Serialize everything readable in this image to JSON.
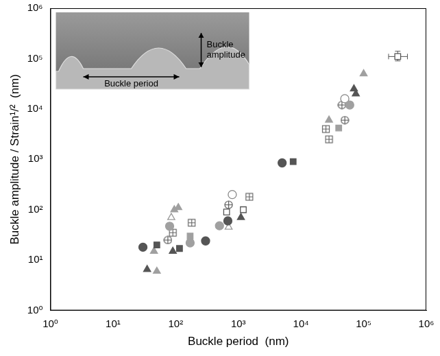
{
  "chart_data": {
    "type": "scatter",
    "x_label": "Buckle period  (nm)",
    "y_label": "Buckle amplitude / Strain¹/²  (nm)",
    "log": true,
    "grid": false,
    "xlim": [
      1,
      1000000
    ],
    "ylim": [
      1,
      1000000
    ],
    "xticks": [
      {
        "value": 1,
        "label": "10⁰"
      },
      {
        "value": 10,
        "label": "10¹"
      },
      {
        "value": 100,
        "label": "10²"
      },
      {
        "value": 1000,
        "label": "10³"
      },
      {
        "value": 10000,
        "label": "10⁴"
      },
      {
        "value": 100000,
        "label": "10⁵"
      },
      {
        "value": 1000000,
        "label": "10⁶"
      }
    ],
    "yticks": [
      {
        "value": 1,
        "label": "10⁰"
      },
      {
        "value": 10,
        "label": "10¹"
      },
      {
        "value": 100,
        "label": "10²"
      },
      {
        "value": 1000,
        "label": "10³"
      },
      {
        "value": 10000,
        "label": "10⁴"
      },
      {
        "value": 100000,
        "label": "10⁵"
      },
      {
        "value": 1000000,
        "label": "10⁶"
      }
    ],
    "inset": {
      "labels": [
        "Buckle period",
        "Buckle amplitude"
      ]
    },
    "series": [
      {
        "color": "#555555",
        "marker": "circle",
        "x": [
          30,
          300,
          680,
          5000
        ],
        "values": [
          18,
          24,
          60,
          850
        ]
      },
      {
        "color": "#a0a0a0",
        "marker": "circle",
        "x": [
          80,
          170,
          500,
          60000
        ],
        "values": [
          47,
          22,
          48,
          12000
        ]
      },
      {
        "color": "#555555",
        "marker": "square",
        "x": [
          50,
          115,
          7500
        ],
        "values": [
          20,
          17,
          900
        ]
      },
      {
        "color": "#a0a0a0",
        "marker": "square",
        "x": [
          170,
          40000
        ],
        "values": [
          30,
          4200
        ]
      },
      {
        "color": "#555555",
        "marker": "triangle",
        "x": [
          35,
          90,
          1100,
          70000,
          75000
        ],
        "values": [
          6.5,
          15,
          70,
          25000,
          20000
        ]
      },
      {
        "color": "#a0a0a0",
        "marker": "triangle",
        "x": [
          45,
          50,
          95,
          110,
          28000,
          100000
        ],
        "values": [
          15,
          6,
          100,
          110,
          6000,
          50000
        ]
      },
      {
        "color": "#555555",
        "marker": "open_square",
        "x": [
          650,
          1200,
          350000
        ],
        "values": [
          90,
          100,
          110000
        ],
        "x_error": [
          null,
          null,
          [
            250000,
            500000
          ]
        ],
        "y_error": [
          null,
          null,
          [
            90000,
            140000
          ]
        ]
      },
      {
        "color": "#666666",
        "marker": "square_cross",
        "x": [
          90,
          180,
          1500,
          25000,
          28000
        ],
        "values": [
          35,
          55,
          180,
          4000,
          2500
        ]
      },
      {
        "color": "#888888",
        "marker": "open_circle",
        "x": [
          800,
          50000
        ],
        "values": [
          200,
          16000
        ]
      },
      {
        "color": "#555555",
        "marker": "circle_cross",
        "x": [
          75,
          700,
          45000,
          50000
        ],
        "values": [
          25,
          125,
          12000,
          6000
        ]
      },
      {
        "color": "#999999",
        "marker": "open_triangle",
        "x": [
          85,
          700
        ],
        "values": [
          70,
          45
        ]
      }
    ]
  }
}
